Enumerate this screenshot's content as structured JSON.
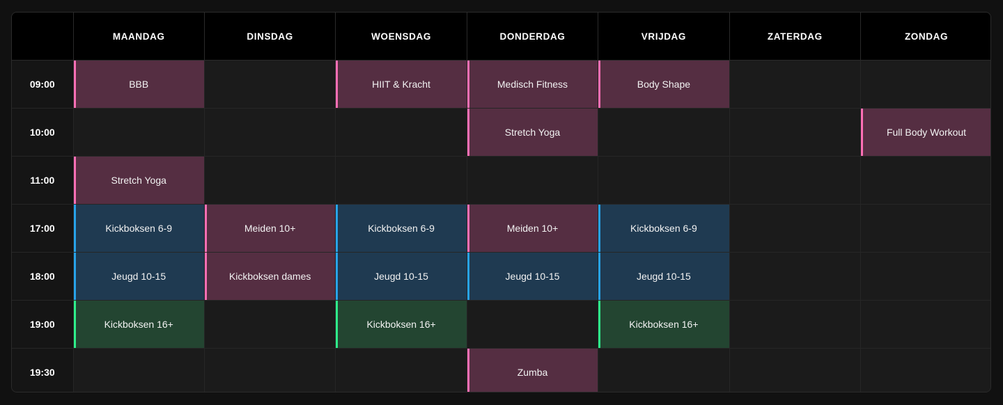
{
  "colors": {
    "pink_accent": "#ff6fb5",
    "pink_fill": "#552e42",
    "blue_accent": "#27a3ea",
    "blue_fill": "#1f3a51",
    "green_accent": "#2ef08a",
    "green_fill": "#234531",
    "empty_cell": "#1b1b1b",
    "header_bg": "#000000"
  },
  "schedule": {
    "days": [
      "MAANDAG",
      "DINSDAG",
      "WOENSDAG",
      "DONDERDAG",
      "VRIJDAG",
      "ZATERDAG",
      "ZONDAG"
    ],
    "rows": [
      {
        "time": "09:00",
        "cells": [
          {
            "label": "BBB",
            "category": "pink"
          },
          null,
          {
            "label": "HIIT & Kracht",
            "category": "pink"
          },
          {
            "label": "Medisch Fitness",
            "category": "pink"
          },
          {
            "label": "Body Shape",
            "category": "pink"
          },
          null,
          null
        ]
      },
      {
        "time": "10:00",
        "cells": [
          null,
          null,
          null,
          {
            "label": "Stretch Yoga",
            "category": "pink"
          },
          null,
          null,
          {
            "label": "Full Body Workout",
            "category": "pink"
          }
        ]
      },
      {
        "time": "11:00",
        "cells": [
          {
            "label": "Stretch Yoga",
            "category": "pink"
          },
          null,
          null,
          null,
          null,
          null,
          null
        ]
      },
      {
        "time": "17:00",
        "cells": [
          {
            "label": "Kickboksen 6-9",
            "category": "blue"
          },
          {
            "label": "Meiden 10+",
            "category": "pink"
          },
          {
            "label": "Kickboksen 6-9",
            "category": "blue"
          },
          {
            "label": "Meiden 10+",
            "category": "pink"
          },
          {
            "label": "Kickboksen 6-9",
            "category": "blue"
          },
          null,
          null
        ]
      },
      {
        "time": "18:00",
        "cells": [
          {
            "label": "Jeugd 10-15",
            "category": "blue"
          },
          {
            "label": "Kickboksen dames",
            "category": "pink"
          },
          {
            "label": "Jeugd 10-15",
            "category": "blue"
          },
          {
            "label": "Jeugd 10-15",
            "category": "blue"
          },
          {
            "label": "Jeugd 10-15",
            "category": "blue"
          },
          null,
          null
        ]
      },
      {
        "time": "19:00",
        "cells": [
          {
            "label": "Kickboksen 16+",
            "category": "green"
          },
          null,
          {
            "label": "Kickboksen 16+",
            "category": "green"
          },
          null,
          {
            "label": "Kickboksen 16+",
            "category": "green"
          },
          null,
          null
        ]
      },
      {
        "time": "19:30",
        "cells": [
          null,
          null,
          null,
          {
            "label": "Zumba",
            "category": "pink"
          },
          null,
          null,
          null
        ]
      }
    ]
  }
}
